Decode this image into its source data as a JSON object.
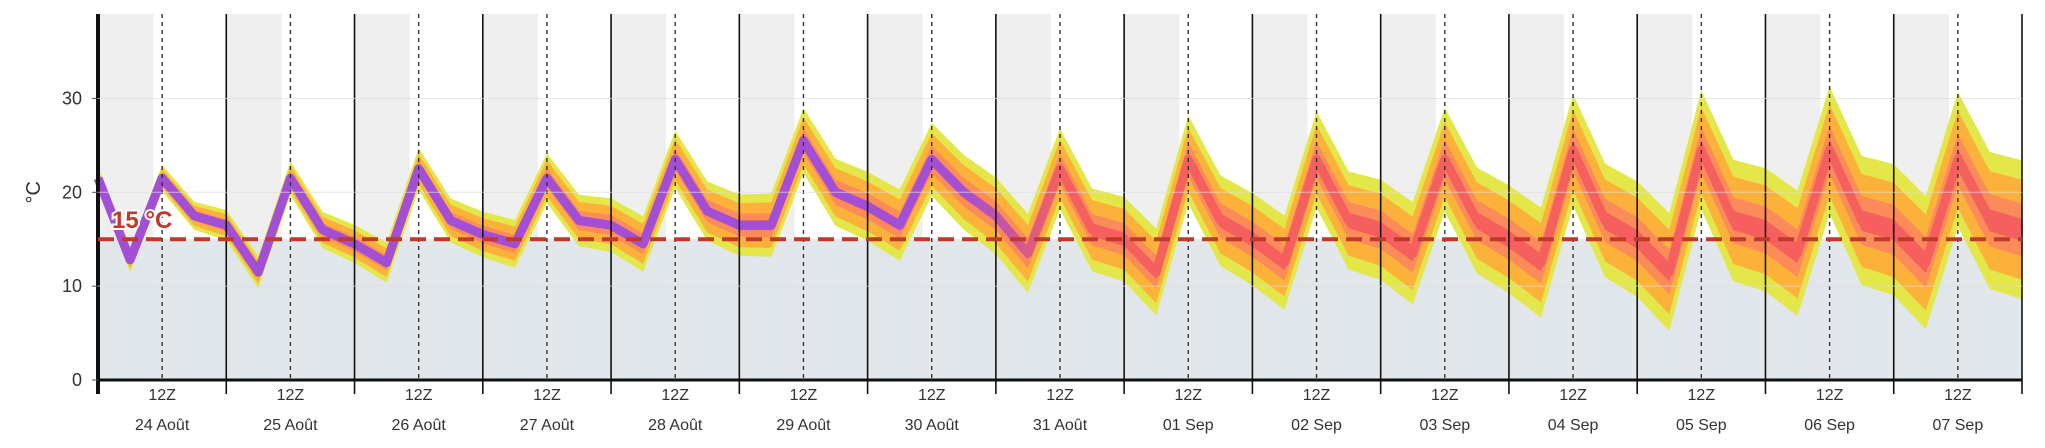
{
  "chart_data": {
    "type": "area",
    "ylabel": "°C",
    "ylim": [
      0,
      39
    ],
    "yticks": [
      0,
      10,
      20,
      30
    ],
    "threshold": {
      "value": 15,
      "label": "15 °C",
      "color": "#c0392b"
    },
    "hour_label": "12Z",
    "days": [
      "24 Août",
      "25 Août",
      "26 Août",
      "27 Août",
      "28 Août",
      "29 Août",
      "30 Août",
      "31 Août",
      "01 Sep",
      "02 Sep",
      "03 Sep",
      "04 Sep",
      "05 Sep",
      "06 Sep",
      "07 Sep"
    ],
    "x": [
      0.0,
      0.25,
      0.5,
      0.75,
      1.0,
      1.25,
      1.5,
      1.75,
      2.0,
      2.25,
      2.5,
      2.75,
      3.0,
      3.25,
      3.5,
      3.75,
      4.0,
      4.25,
      4.5,
      4.75,
      5.0,
      5.25,
      5.5,
      5.75,
      6.0,
      6.25,
      6.5,
      6.75,
      7.0,
      7.25,
      7.5,
      7.75,
      8.0,
      8.25,
      8.5,
      8.75,
      9.0,
      9.25,
      9.5,
      9.75,
      10.0,
      10.25,
      10.5,
      10.75,
      11.0,
      11.25,
      11.5,
      11.75,
      12.0,
      12.25,
      12.5,
      12.75,
      13.0,
      13.25,
      13.5,
      13.75,
      14.0,
      14.25,
      14.5,
      14.75,
      15.0
    ],
    "series": [
      {
        "values": [
          21,
          12.5,
          20,
          17,
          16,
          11,
          20,
          15,
          14,
          12,
          21,
          16,
          15,
          14,
          20,
          16,
          16,
          14,
          22,
          17,
          16,
          16,
          24,
          19,
          18,
          16,
          22,
          19,
          17,
          13,
          21,
          15,
          14,
          11,
          22,
          16,
          14,
          12,
          22,
          16,
          15,
          13,
          22,
          16,
          14,
          12,
          23,
          16,
          14,
          11,
          23,
          16,
          15,
          13,
          23,
          16,
          15,
          12,
          22,
          16,
          15
        ]
      },
      {
        "values": [
          21.5,
          12.8,
          21.5,
          17.5,
          16.5,
          11.5,
          21.5,
          16,
          14.5,
          12.5,
          22.5,
          17,
          15.5,
          14.5,
          21.5,
          17,
          16.5,
          14.5,
          23.5,
          18,
          16.5,
          16.5,
          25.5,
          20,
          18.5,
          16.5,
          23.5,
          20,
          17.5,
          13.5,
          22.5,
          16,
          15,
          11.5,
          23.5,
          17,
          15,
          12.5,
          23.5,
          17,
          16,
          13.5,
          23.5,
          17,
          15,
          12.5,
          24.5,
          17,
          15,
          11.5,
          24.5,
          17,
          16,
          13.5,
          24.5,
          17,
          16,
          12.5,
          23.5,
          17,
          16
        ]
      },
      {
        "values": [
          22,
          13.2,
          23,
          18,
          17,
          12,
          22,
          17,
          15,
          13,
          24,
          18,
          16,
          15,
          23,
          18,
          17,
          15,
          25,
          19,
          17,
          17,
          27,
          21,
          19,
          17,
          25,
          21,
          18,
          14,
          24,
          17,
          16,
          12,
          25,
          18,
          16,
          13,
          25,
          18,
          17,
          14,
          25,
          18,
          16,
          13,
          26,
          18,
          16,
          12,
          26,
          18,
          17,
          14,
          26,
          18,
          17,
          13,
          25,
          18,
          17
        ]
      },
      {
        "values": [
          20,
          12,
          19,
          16,
          15,
          10,
          19,
          14,
          13,
          11,
          20,
          15,
          14,
          13,
          19,
          15,
          15,
          13,
          21,
          16,
          15,
          15,
          23,
          18,
          17,
          15,
          21,
          18,
          16,
          12,
          20,
          14,
          13,
          10,
          21,
          15,
          13,
          11,
          21,
          15,
          14,
          12,
          21,
          15,
          13,
          11,
          22,
          15,
          13,
          10,
          22,
          15,
          14,
          12,
          22,
          15,
          14,
          11,
          21,
          15,
          14
        ]
      }
    ]
  },
  "colors": {
    "night_shade": "#efefef",
    "below_threshold": "#dfe5ea",
    "band_outer": "#e3e74a",
    "band_mid": "#fcb23a",
    "band_inner": "#fb8c5a",
    "band_core": "#f5605e",
    "core_line": "#a24fd6"
  }
}
